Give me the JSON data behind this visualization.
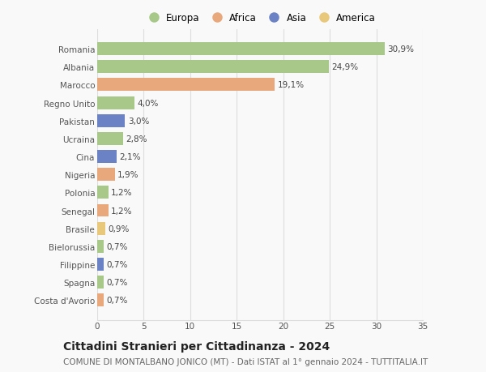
{
  "categories": [
    "Costa d'Avorio",
    "Spagna",
    "Filippine",
    "Bielorussia",
    "Brasile",
    "Senegal",
    "Polonia",
    "Nigeria",
    "Cina",
    "Ucraina",
    "Pakistan",
    "Regno Unito",
    "Marocco",
    "Albania",
    "Romania"
  ],
  "values": [
    0.7,
    0.7,
    0.7,
    0.7,
    0.9,
    1.2,
    1.2,
    1.9,
    2.1,
    2.8,
    3.0,
    4.0,
    19.1,
    24.9,
    30.9
  ],
  "labels": [
    "0,7%",
    "0,7%",
    "0,7%",
    "0,7%",
    "0,9%",
    "1,2%",
    "1,2%",
    "1,9%",
    "2,1%",
    "2,8%",
    "3,0%",
    "4,0%",
    "19,1%",
    "24,9%",
    "30,9%"
  ],
  "colors": [
    "#e8a87c",
    "#a8c88a",
    "#6b83c4",
    "#a8c88a",
    "#e8c87a",
    "#e8a87c",
    "#a8c88a",
    "#e8a87c",
    "#6b83c4",
    "#a8c88a",
    "#6b83c4",
    "#a8c88a",
    "#e8a87c",
    "#a8c88a",
    "#a8c88a"
  ],
  "continent_colors": {
    "Europa": "#a8c88a",
    "Africa": "#e8a87c",
    "Asia": "#6b83c4",
    "America": "#e8c87a"
  },
  "title": "Cittadini Stranieri per Cittadinanza - 2024",
  "subtitle": "COMUNE DI MONTALBANO JONICO (MT) - Dati ISTAT al 1° gennaio 2024 - TUTTITALIA.IT",
  "xlim": [
    0,
    35
  ],
  "xticks": [
    0,
    5,
    10,
    15,
    20,
    25,
    30,
    35
  ],
  "background_color": "#f9f9f9",
  "grid_color": "#dddddd",
  "bar_height": 0.72,
  "title_fontsize": 10,
  "subtitle_fontsize": 7.5,
  "label_fontsize": 7.5,
  "tick_fontsize": 7.5,
  "legend_fontsize": 8.5
}
